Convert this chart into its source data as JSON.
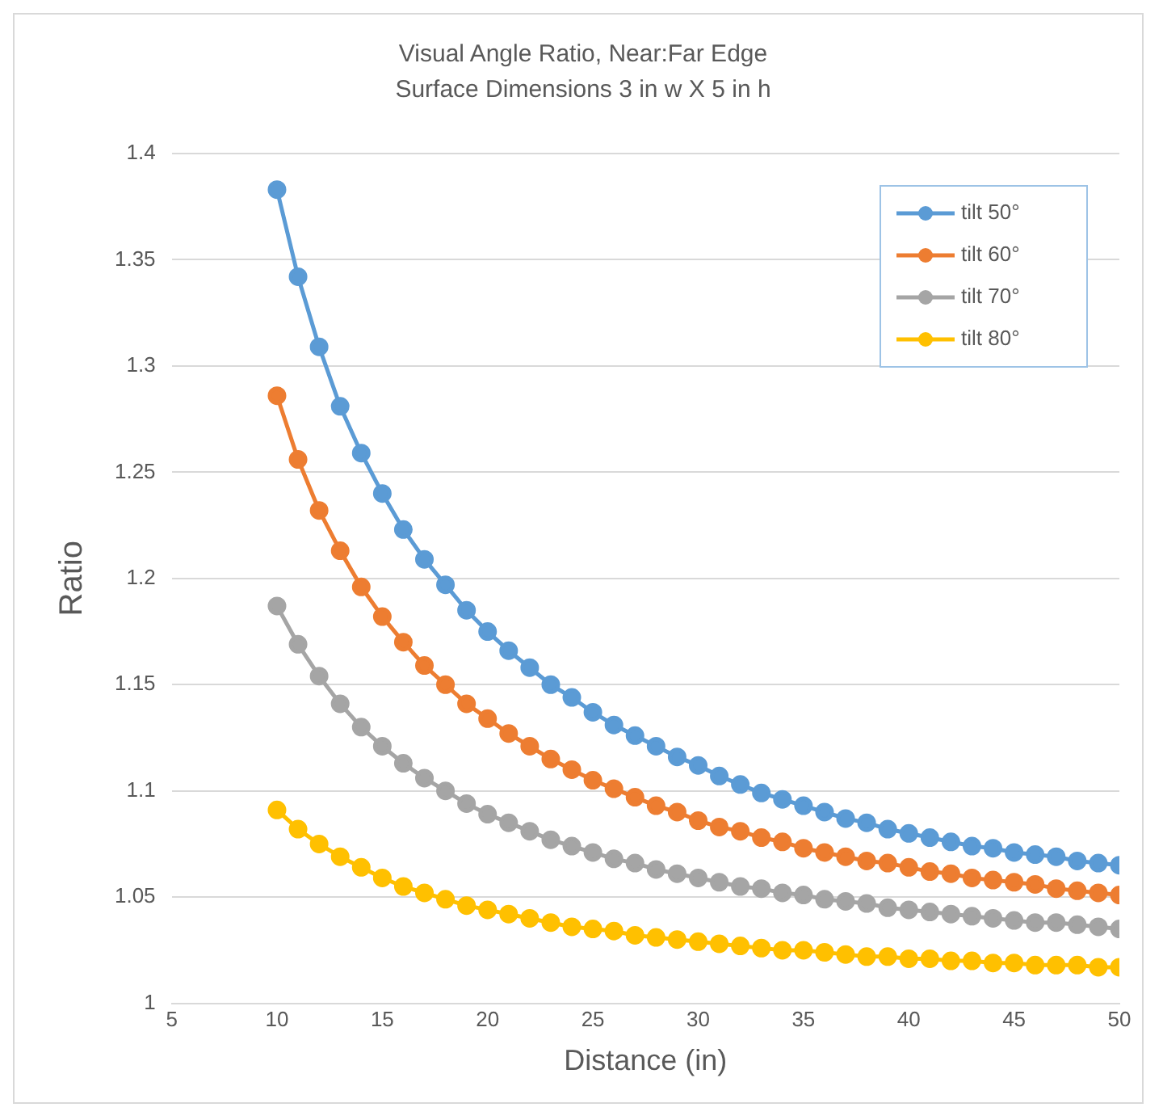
{
  "chart_data": {
    "type": "line",
    "title": "Visual Angle Ratio, Near:Far Edge",
    "subtitle": "Surface Dimensions 3 in w X 5 in h",
    "xlabel": "Distance (in)",
    "ylabel": "Ratio",
    "x": [
      10,
      11,
      12,
      13,
      14,
      15,
      16,
      17,
      18,
      19,
      20,
      21,
      22,
      23,
      24,
      25,
      26,
      27,
      28,
      29,
      30,
      31,
      32,
      33,
      34,
      35,
      36,
      37,
      38,
      39,
      40,
      41,
      42,
      43,
      44,
      45,
      46,
      47,
      48,
      49,
      50
    ],
    "series": [
      {
        "name": "tilt 50°",
        "color": "#5b9bd5",
        "values": [
          1.383,
          1.342,
          1.309,
          1.281,
          1.259,
          1.24,
          1.223,
          1.209,
          1.197,
          1.185,
          1.175,
          1.166,
          1.158,
          1.15,
          1.144,
          1.137,
          1.131,
          1.126,
          1.121,
          1.116,
          1.112,
          1.107,
          1.103,
          1.099,
          1.096,
          1.093,
          1.09,
          1.087,
          1.085,
          1.082,
          1.08,
          1.078,
          1.076,
          1.074,
          1.073,
          1.071,
          1.07,
          1.069,
          1.067,
          1.066,
          1.065
        ]
      },
      {
        "name": "tilt 60°",
        "color": "#ed7d31",
        "values": [
          1.286,
          1.256,
          1.232,
          1.213,
          1.196,
          1.182,
          1.17,
          1.159,
          1.15,
          1.141,
          1.134,
          1.127,
          1.121,
          1.115,
          1.11,
          1.105,
          1.101,
          1.097,
          1.093,
          1.09,
          1.086,
          1.083,
          1.081,
          1.078,
          1.076,
          1.073,
          1.071,
          1.069,
          1.067,
          1.066,
          1.064,
          1.062,
          1.061,
          1.059,
          1.058,
          1.057,
          1.056,
          1.054,
          1.053,
          1.052,
          1.051
        ]
      },
      {
        "name": "tilt 70°",
        "color": "#a5a5a5",
        "values": [
          1.187,
          1.169,
          1.154,
          1.141,
          1.13,
          1.121,
          1.113,
          1.106,
          1.1,
          1.094,
          1.089,
          1.085,
          1.081,
          1.077,
          1.074,
          1.071,
          1.068,
          1.066,
          1.063,
          1.061,
          1.059,
          1.057,
          1.055,
          1.054,
          1.052,
          1.051,
          1.049,
          1.048,
          1.047,
          1.045,
          1.044,
          1.043,
          1.042,
          1.041,
          1.04,
          1.039,
          1.038,
          1.038,
          1.037,
          1.036,
          1.035
        ]
      },
      {
        "name": "tilt 80°",
        "color": "#ffc000",
        "values": [
          1.091,
          1.082,
          1.075,
          1.069,
          1.064,
          1.059,
          1.055,
          1.052,
          1.049,
          1.046,
          1.044,
          1.042,
          1.04,
          1.038,
          1.036,
          1.035,
          1.034,
          1.032,
          1.031,
          1.03,
          1.029,
          1.028,
          1.027,
          1.026,
          1.025,
          1.025,
          1.024,
          1.023,
          1.022,
          1.022,
          1.021,
          1.021,
          1.02,
          1.02,
          1.019,
          1.019,
          1.018,
          1.018,
          1.018,
          1.017,
          1.017
        ]
      }
    ],
    "xlim": [
      5,
      50
    ],
    "xticks": [
      5,
      10,
      15,
      20,
      25,
      30,
      35,
      40,
      45,
      50
    ],
    "ylim": [
      1,
      1.4
    ],
    "yticks": [
      1,
      1.05,
      1.1,
      1.15,
      1.2,
      1.25,
      1.3,
      1.35,
      1.4
    ],
    "grid": "y",
    "legend": "top right",
    "marker": "circle",
    "line_style": "solid"
  }
}
